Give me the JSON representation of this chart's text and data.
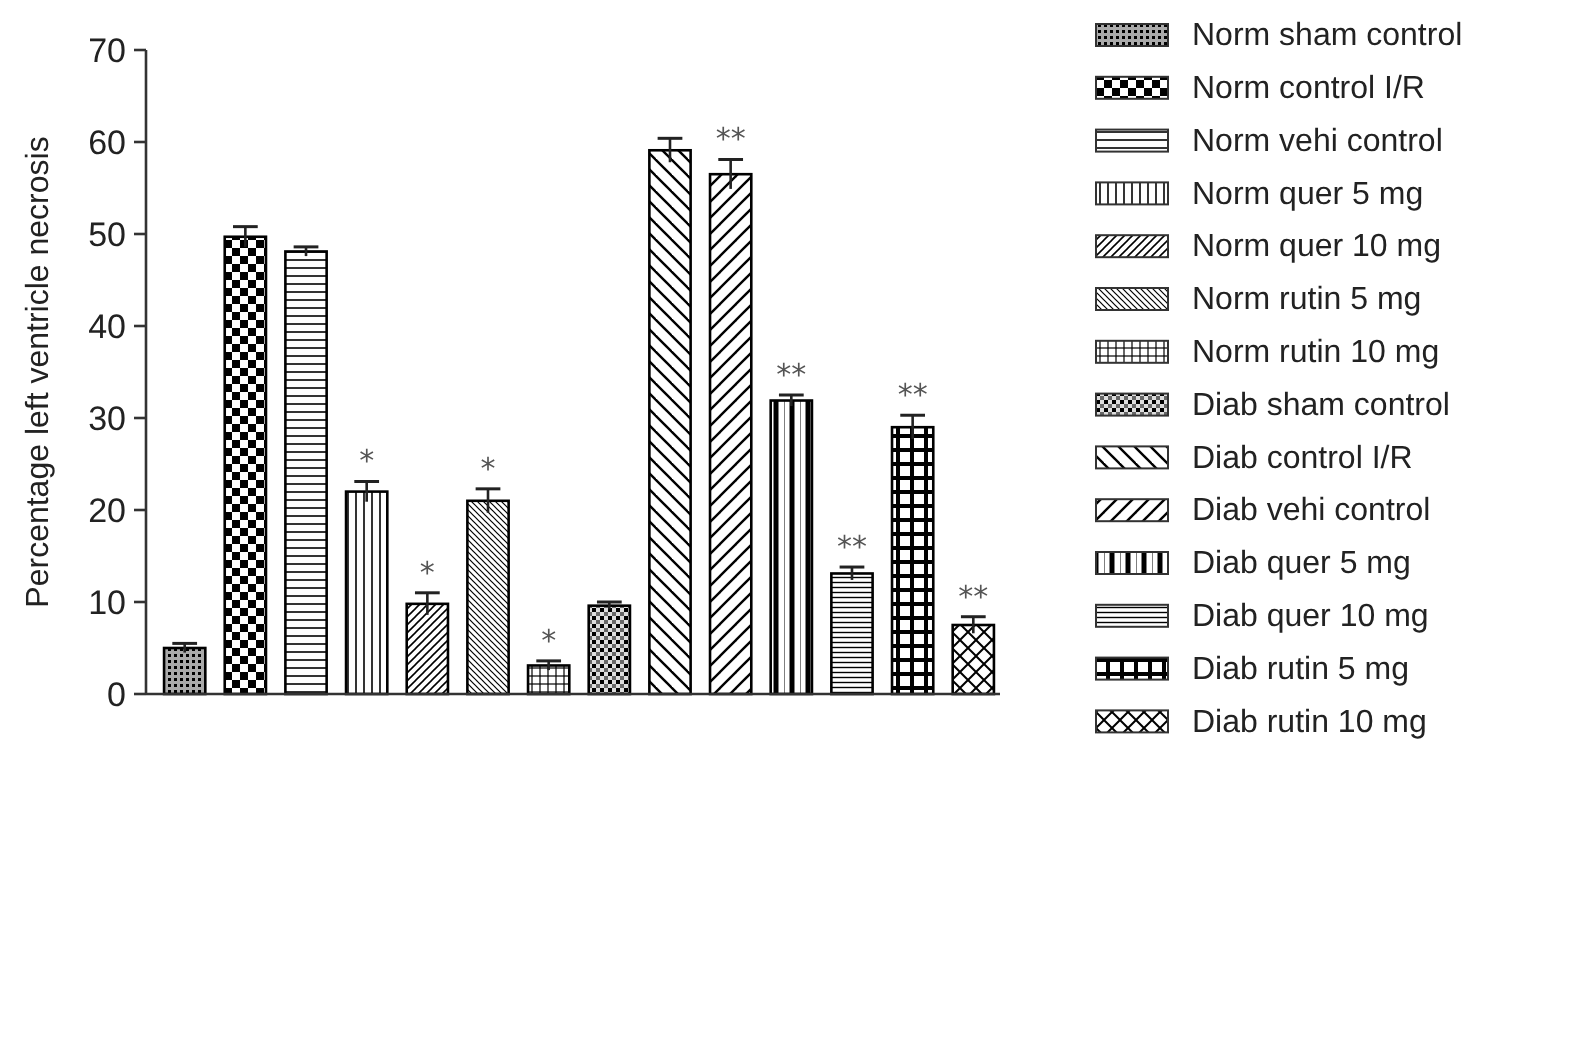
{
  "chart_data": {
    "type": "bar",
    "ylabel": "Percentage left ventricle necrosis",
    "categories": [
      null,
      null,
      null,
      null,
      null,
      null,
      null,
      null,
      null,
      null,
      null,
      null,
      null,
      null
    ],
    "ylim": [
      0,
      70
    ],
    "yticks": [
      0,
      10,
      20,
      30,
      40,
      50,
      60,
      70
    ],
    "legend": "right",
    "grid": false,
    "series": [
      {
        "name": "Norm sham control",
        "color": "#000000",
        "values": [
          5.0,
          null,
          null,
          null,
          null,
          null,
          null,
          null,
          null,
          null,
          null,
          null,
          null,
          null
        ],
        "errors": [
          0.5,
          null,
          null,
          null,
          null,
          null,
          null,
          null,
          null,
          null,
          null,
          null,
          null,
          null
        ]
      },
      {
        "name": "Norm control I/R",
        "color": "#000000",
        "values": [
          null,
          49.7,
          null,
          null,
          null,
          null,
          null,
          null,
          null,
          null,
          null,
          null,
          null,
          null
        ],
        "errors": [
          null,
          1.1,
          null,
          null,
          null,
          null,
          null,
          null,
          null,
          null,
          null,
          null,
          null,
          null
        ]
      },
      {
        "name": "Norm vehi control",
        "color": "#000000",
        "values": [
          null,
          null,
          48.1,
          null,
          null,
          null,
          null,
          null,
          null,
          null,
          null,
          null,
          null,
          null
        ],
        "errors": [
          null,
          null,
          0.5,
          null,
          null,
          null,
          null,
          null,
          null,
          null,
          null,
          null,
          null,
          null
        ]
      },
      {
        "name": "Norm quer 5 mg",
        "color": "#000000",
        "values": [
          null,
          null,
          null,
          22.0,
          null,
          null,
          null,
          null,
          null,
          null,
          null,
          null,
          null,
          null
        ],
        "errors": [
          null,
          null,
          null,
          1.1,
          null,
          null,
          null,
          null,
          null,
          null,
          null,
          null,
          null,
          null
        ],
        "value_labels": [
          null,
          null,
          null,
          "*",
          null,
          null,
          null,
          null,
          null,
          null,
          null,
          null,
          null,
          null
        ]
      },
      {
        "name": "Norm quer 10 mg",
        "color": "#000000",
        "values": [
          null,
          null,
          null,
          null,
          9.8,
          null,
          null,
          null,
          null,
          null,
          null,
          null,
          null,
          null
        ],
        "errors": [
          null,
          null,
          null,
          null,
          1.2,
          null,
          null,
          null,
          null,
          null,
          null,
          null,
          null,
          null
        ],
        "value_labels": [
          null,
          null,
          null,
          null,
          "*",
          null,
          null,
          null,
          null,
          null,
          null,
          null,
          null,
          null
        ]
      },
      {
        "name": "Norm rutin 5 mg",
        "color": "#000000",
        "values": [
          null,
          null,
          null,
          null,
          null,
          21.0,
          null,
          null,
          null,
          null,
          null,
          null,
          null,
          null
        ],
        "errors": [
          null,
          null,
          null,
          null,
          null,
          1.3,
          null,
          null,
          null,
          null,
          null,
          null,
          null,
          null
        ],
        "value_labels": [
          null,
          null,
          null,
          null,
          null,
          "*",
          null,
          null,
          null,
          null,
          null,
          null,
          null,
          null
        ]
      },
      {
        "name": "Norm rutin 10 mg",
        "color": "#000000",
        "values": [
          null,
          null,
          null,
          null,
          null,
          null,
          3.1,
          null,
          null,
          null,
          null,
          null,
          null,
          null
        ],
        "errors": [
          null,
          null,
          null,
          null,
          null,
          null,
          0.5,
          null,
          null,
          null,
          null,
          null,
          null,
          null
        ],
        "value_labels": [
          null,
          null,
          null,
          null,
          null,
          null,
          "*",
          null,
          null,
          null,
          null,
          null,
          null,
          null
        ]
      },
      {
        "name": "Diab sham control",
        "color": "#000000",
        "values": [
          null,
          null,
          null,
          null,
          null,
          null,
          null,
          9.6,
          null,
          null,
          null,
          null,
          null,
          null
        ],
        "errors": [
          null,
          null,
          null,
          null,
          null,
          null,
          null,
          0.4,
          null,
          null,
          null,
          null,
          null,
          null
        ]
      },
      {
        "name": "Diab control I/R",
        "color": "#000000",
        "values": [
          null,
          null,
          null,
          null,
          null,
          null,
          null,
          null,
          59.1,
          null,
          null,
          null,
          null,
          null
        ],
        "errors": [
          null,
          null,
          null,
          null,
          null,
          null,
          null,
          null,
          1.3,
          null,
          null,
          null,
          null,
          null
        ]
      },
      {
        "name": "Diab vehi control",
        "color": "#000000",
        "values": [
          null,
          null,
          null,
          null,
          null,
          null,
          null,
          null,
          null,
          56.5,
          null,
          null,
          null,
          null
        ],
        "errors": [
          null,
          null,
          null,
          null,
          null,
          null,
          null,
          null,
          null,
          1.6,
          null,
          null,
          null,
          null
        ],
        "value_labels": [
          null,
          null,
          null,
          null,
          null,
          null,
          null,
          null,
          null,
          "**",
          null,
          null,
          null,
          null
        ]
      },
      {
        "name": "Diab quer 5 mg",
        "color": "#000000",
        "values": [
          null,
          null,
          null,
          null,
          null,
          null,
          null,
          null,
          null,
          null,
          31.9,
          null,
          null,
          null
        ],
        "errors": [
          null,
          null,
          null,
          null,
          null,
          null,
          null,
          null,
          null,
          null,
          0.6,
          null,
          null,
          null
        ],
        "value_labels": [
          null,
          null,
          null,
          null,
          null,
          null,
          null,
          null,
          null,
          null,
          "**",
          null,
          null,
          null
        ]
      },
      {
        "name": "Diab quer 10 mg",
        "color": "#000000",
        "values": [
          null,
          null,
          null,
          null,
          null,
          null,
          null,
          null,
          null,
          null,
          null,
          13.1,
          null,
          null
        ],
        "errors": [
          null,
          null,
          null,
          null,
          null,
          null,
          null,
          null,
          null,
          null,
          null,
          0.7,
          null,
          null
        ],
        "value_labels": [
          null,
          null,
          null,
          null,
          null,
          null,
          null,
          null,
          null,
          null,
          null,
          "**",
          null,
          null
        ]
      },
      {
        "name": "Diab rutin 5 mg",
        "color": "#000000",
        "values": [
          null,
          null,
          null,
          null,
          null,
          null,
          null,
          null,
          null,
          null,
          null,
          null,
          29.0,
          null
        ],
        "errors": [
          null,
          null,
          null,
          null,
          null,
          null,
          null,
          null,
          null,
          null,
          null,
          null,
          1.3,
          null
        ],
        "value_labels": [
          null,
          null,
          null,
          null,
          null,
          null,
          null,
          null,
          null,
          null,
          null,
          null,
          "**",
          null
        ]
      },
      {
        "name": "Diab rutin 10 mg",
        "color": "#000000",
        "values": [
          null,
          null,
          null,
          null,
          null,
          null,
          null,
          null,
          null,
          null,
          null,
          null,
          null,
          7.5
        ],
        "errors": [
          null,
          null,
          null,
          null,
          null,
          null,
          null,
          null,
          null,
          null,
          null,
          null,
          null,
          0.9
        ],
        "value_labels": [
          null,
          null,
          null,
          null,
          null,
          null,
          null,
          null,
          null,
          null,
          null,
          null,
          null,
          "**"
        ]
      }
    ]
  }
}
